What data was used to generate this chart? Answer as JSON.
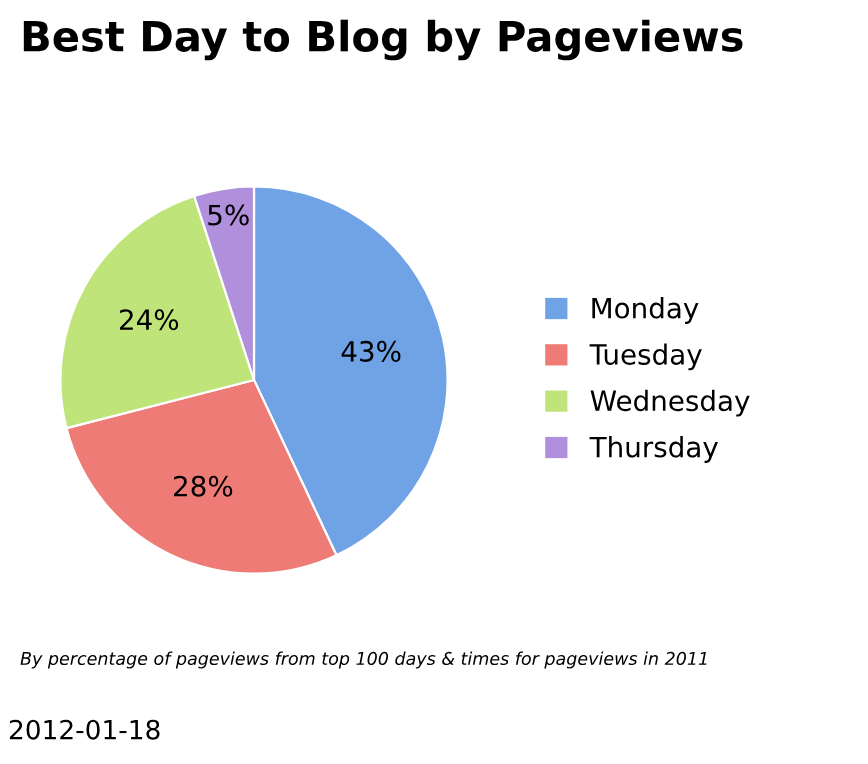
{
  "chart_data": {
    "type": "pie",
    "title": "Best Day to Blog by Pageviews",
    "categories": [
      "Monday",
      "Tuesday",
      "Wednesday",
      "Thursday"
    ],
    "values": [
      43,
      28,
      24,
      5
    ],
    "value_labels": [
      "43%",
      "28%",
      "24%",
      "5%"
    ],
    "colors": [
      "#6fa3e6",
      "#ef7b76",
      "#bfe57a",
      "#b08fdc"
    ],
    "legend": "right",
    "annotations": [
      "By percentage of pageviews from top 100 days & times for pageviews in 2011",
      "2012-01-18"
    ]
  }
}
